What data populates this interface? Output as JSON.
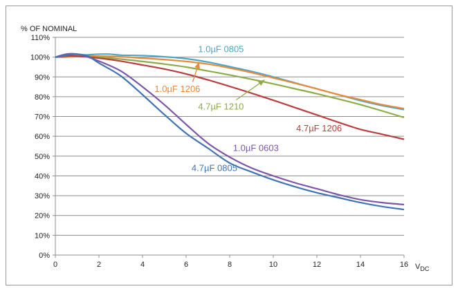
{
  "chart_data": {
    "type": "line",
    "title": "",
    "ylabel": "% OF NOMINAL",
    "xlabel": "V",
    "xlabel_sub": "DC",
    "xlim": [
      0,
      16
    ],
    "ylim": [
      0,
      110
    ],
    "x_ticks": [
      0,
      2,
      4,
      6,
      8,
      10,
      12,
      14,
      16
    ],
    "x_tick_labels": [
      "0",
      "2",
      "4",
      "6",
      "8",
      "10",
      "12",
      "14",
      "16"
    ],
    "y_ticks": [
      0,
      10,
      20,
      30,
      40,
      50,
      60,
      70,
      80,
      90,
      100,
      110
    ],
    "y_tick_labels": [
      "0%",
      "10%",
      "20%",
      "30%",
      "40%",
      "50%",
      "60%",
      "70%",
      "80%",
      "90%",
      "100%",
      "110%"
    ],
    "grid": "horizontal",
    "series": [
      {
        "name": "1.0µF 0805",
        "color": "#4aa6c4",
        "x": [
          0,
          0.5,
          1,
          1.5,
          2,
          2.5,
          3,
          4,
          5,
          6,
          7,
          8,
          9,
          10,
          11,
          12,
          13,
          14,
          15,
          16
        ],
        "y": [
          100,
          100.5,
          101,
          101.2,
          101.5,
          101.5,
          101,
          100.8,
          100.2,
          99.2,
          97.5,
          95.2,
          92.8,
          90,
          87,
          84,
          81,
          78,
          75.5,
          73.5
        ]
      },
      {
        "name": "1.0µF 1206",
        "color": "#e98a3a",
        "x": [
          0,
          0.5,
          1,
          2,
          3,
          4,
          5,
          6,
          7,
          8,
          9,
          10,
          11,
          12,
          13,
          14,
          15,
          16
        ],
        "y": [
          100,
          100,
          100.5,
          100.5,
          100.2,
          99.5,
          98.8,
          97.8,
          96.5,
          94.5,
          92.2,
          89.5,
          86.8,
          84,
          81,
          78.5,
          76,
          74
        ]
      },
      {
        "name": "4.7µF 1210",
        "color": "#8cac45",
        "x": [
          0,
          0.5,
          1,
          2,
          3,
          4,
          5,
          6,
          7,
          8,
          9,
          10,
          11,
          12,
          13,
          14,
          15,
          16
        ],
        "y": [
          100,
          100.5,
          100.5,
          100,
          99,
          97.8,
          96.5,
          95,
          93,
          91,
          88.8,
          86.5,
          84,
          81.5,
          78.8,
          76,
          72.8,
          69.5
        ]
      },
      {
        "name": "4.7µF 1206",
        "color": "#bb3d3d",
        "x": [
          0,
          0.5,
          1,
          2,
          3,
          4,
          5,
          6,
          7,
          8,
          9,
          10,
          11,
          12,
          13,
          14,
          15,
          16
        ],
        "y": [
          100,
          100.5,
          100.5,
          99.5,
          98,
          96,
          94,
          91.5,
          88.5,
          85.2,
          81.8,
          78.2,
          74.5,
          70.8,
          67,
          63.5,
          61,
          58.5
        ]
      },
      {
        "name": "1.0µF 0603",
        "color": "#7b56a8",
        "x": [
          0,
          0.5,
          1,
          1.5,
          2,
          3,
          4,
          5,
          6,
          7,
          8,
          9,
          10,
          11,
          12,
          13,
          14,
          15,
          16
        ],
        "y": [
          100,
          101.5,
          101.5,
          100,
          98,
          93,
          85,
          76,
          66,
          56.5,
          49.5,
          44,
          40,
          36.5,
          33.5,
          30.5,
          28,
          26.5,
          25.5
        ]
      },
      {
        "name": "4.7µF 0805",
        "color": "#3f74b3",
        "x": [
          0,
          0.5,
          1,
          1.5,
          2,
          3,
          4,
          5,
          6,
          7,
          8,
          9,
          10,
          11,
          12,
          13,
          14,
          15,
          16
        ],
        "y": [
          100,
          101,
          101.5,
          100.5,
          97,
          90.5,
          81,
          71,
          61.5,
          54,
          46.5,
          42,
          38,
          34.5,
          31.5,
          29,
          26.5,
          24.5,
          23
        ]
      }
    ],
    "annotations": [
      {
        "text": "1.0µF 0805",
        "series": 0,
        "at_x": 7.6,
        "at_y": 102.5,
        "arrow": false
      },
      {
        "text": "1.0µF 1206",
        "series": 1,
        "at_x": 5.6,
        "at_y": 82.5,
        "arrow": true,
        "arrow_to": [
          6.6,
          97.5
        ]
      },
      {
        "text": "4.7µF 1210",
        "series": 2,
        "at_x": 7.6,
        "at_y": 73.5,
        "arrow": true,
        "arrow_to": [
          9.6,
          88.5
        ]
      },
      {
        "text": "4.7µF 1206",
        "series": 3,
        "at_x": 12.1,
        "at_y": 62.5,
        "arrow": false
      },
      {
        "text": "1.0µF 0603",
        "series": 4,
        "at_x": 9.2,
        "at_y": 52.5,
        "arrow": false
      },
      {
        "text": "4.7µF 0805",
        "series": 5,
        "at_x": 7.3,
        "at_y": 42.5,
        "arrow": false
      }
    ]
  }
}
